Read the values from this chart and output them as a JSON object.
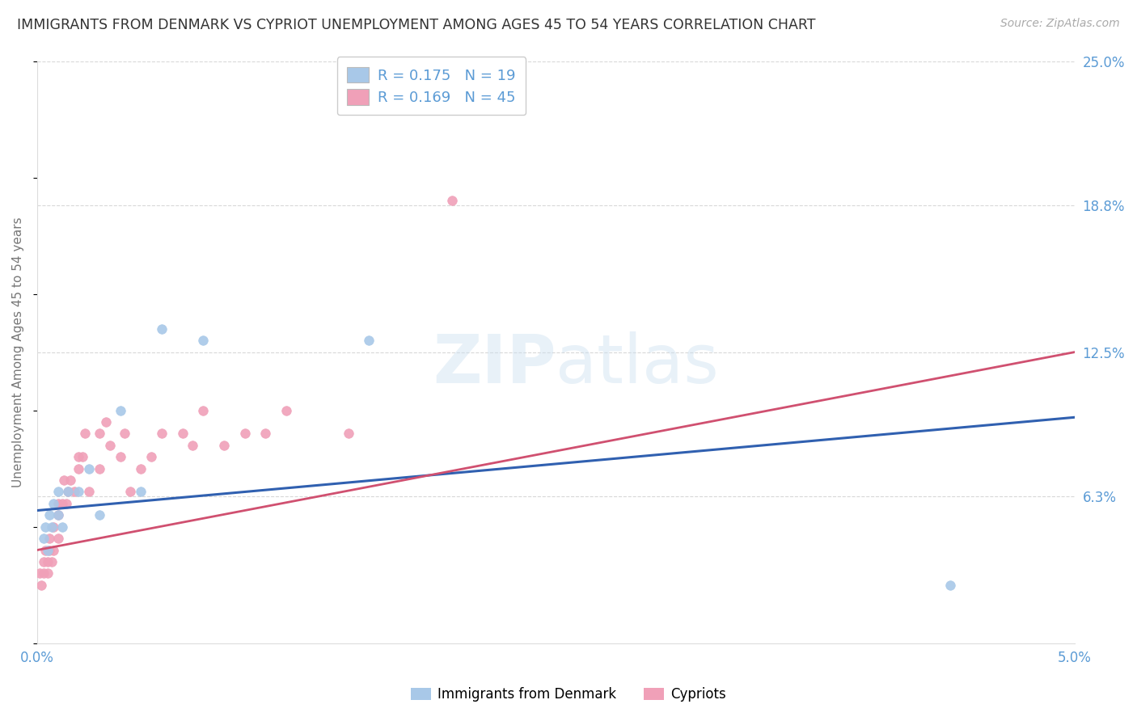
{
  "title": "IMMIGRANTS FROM DENMARK VS CYPRIOT UNEMPLOYMENT AMONG AGES 45 TO 54 YEARS CORRELATION CHART",
  "source": "Source: ZipAtlas.com",
  "ylabel": "Unemployment Among Ages 45 to 54 years",
  "xlim": [
    0.0,
    0.05
  ],
  "ylim": [
    0.0,
    0.25
  ],
  "ytick_values": [
    0.0,
    0.063,
    0.125,
    0.188,
    0.25
  ],
  "ytick_labels": [
    "",
    "6.3%",
    "12.5%",
    "18.8%",
    "25.0%"
  ],
  "xtick_values": [
    0.0,
    0.05
  ],
  "xtick_labels": [
    "0.0%",
    "5.0%"
  ],
  "grid_color": "#c8c8c8",
  "background_color": "#ffffff",
  "series1_color": "#a8c8e8",
  "series2_color": "#f0a0b8",
  "series1_label": "Immigrants from Denmark",
  "series2_label": "Cypriots",
  "line1_color": "#3060b0",
  "line2_color": "#d05070",
  "title_color": "#333333",
  "axis_label_color": "#5b9bd5",
  "legend_text_color": "#5b9bd5",
  "series1_x": [
    0.0003,
    0.0004,
    0.0005,
    0.0006,
    0.0007,
    0.0008,
    0.001,
    0.001,
    0.0012,
    0.0015,
    0.002,
    0.0025,
    0.003,
    0.004,
    0.005,
    0.006,
    0.008,
    0.016,
    0.044
  ],
  "series1_y": [
    0.045,
    0.05,
    0.04,
    0.055,
    0.05,
    0.06,
    0.065,
    0.055,
    0.05,
    0.065,
    0.065,
    0.075,
    0.055,
    0.1,
    0.065,
    0.135,
    0.13,
    0.13,
    0.025
  ],
  "series2_x": [
    0.0001,
    0.0002,
    0.0003,
    0.0003,
    0.0004,
    0.0005,
    0.0005,
    0.0006,
    0.0006,
    0.0007,
    0.0008,
    0.0008,
    0.001,
    0.001,
    0.001,
    0.0012,
    0.0013,
    0.0014,
    0.0015,
    0.0016,
    0.0018,
    0.002,
    0.002,
    0.0022,
    0.0023,
    0.0025,
    0.003,
    0.003,
    0.0033,
    0.0035,
    0.004,
    0.0042,
    0.0045,
    0.005,
    0.0055,
    0.006,
    0.007,
    0.0075,
    0.008,
    0.009,
    0.01,
    0.011,
    0.012,
    0.015,
    0.02
  ],
  "series2_y": [
    0.03,
    0.025,
    0.03,
    0.035,
    0.04,
    0.03,
    0.035,
    0.04,
    0.045,
    0.035,
    0.04,
    0.05,
    0.045,
    0.055,
    0.06,
    0.06,
    0.07,
    0.06,
    0.065,
    0.07,
    0.065,
    0.075,
    0.08,
    0.08,
    0.09,
    0.065,
    0.075,
    0.09,
    0.095,
    0.085,
    0.08,
    0.09,
    0.065,
    0.075,
    0.08,
    0.09,
    0.09,
    0.085,
    0.1,
    0.085,
    0.09,
    0.09,
    0.1,
    0.09,
    0.19
  ],
  "line1_x0": 0.0,
  "line1_y0": 0.057,
  "line1_x1": 0.05,
  "line1_y1": 0.097,
  "line2_x0": 0.0,
  "line2_y0": 0.04,
  "line2_x1": 0.05,
  "line2_y1": 0.125
}
